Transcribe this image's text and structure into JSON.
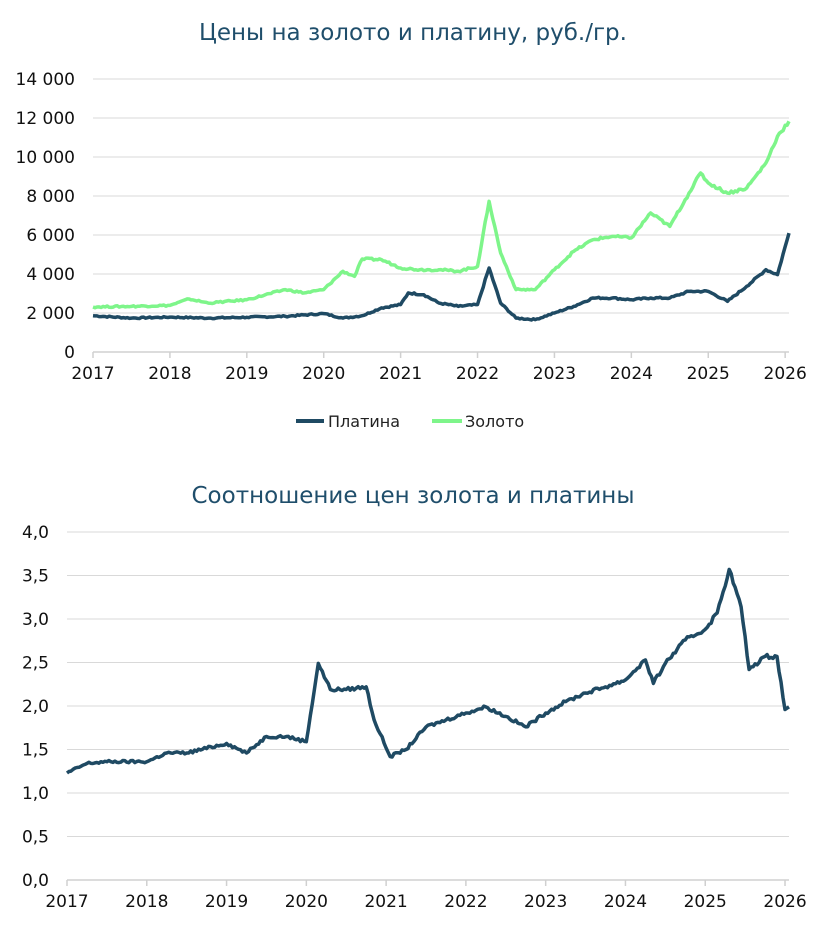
{
  "chart_data": [
    {
      "type": "line",
      "title": "Цены на золото и платину, руб./гр.",
      "xlabel": "",
      "ylabel": "",
      "xlim": [
        2017,
        2026.05
      ],
      "ylim": [
        0,
        14000
      ],
      "x_ticks": [
        "2017",
        "2018",
        "2019",
        "2020",
        "2021",
        "2022",
        "2023",
        "2024",
        "2025",
        "2026"
      ],
      "y_ticks": [
        "0",
        "2 000",
        "4 000",
        "6 000",
        "8 000",
        "10 000",
        "12 000",
        "14 000"
      ],
      "grid": true,
      "legend_position": "bottom",
      "series": [
        {
          "name": "Платина",
          "color": "#1f4a63",
          "x": [
            2017.0,
            2017.5,
            2018.0,
            2018.5,
            2019.0,
            2019.5,
            2020.0,
            2020.25,
            2020.5,
            2020.75,
            2021.0,
            2021.1,
            2021.3,
            2021.5,
            2021.75,
            2022.0,
            2022.15,
            2022.3,
            2022.5,
            2022.75,
            2023.0,
            2023.25,
            2023.5,
            2023.75,
            2024.0,
            2024.25,
            2024.5,
            2024.75,
            2025.0,
            2025.25,
            2025.5,
            2025.75,
            2025.9,
            2026.05
          ],
          "y": [
            1860,
            1740,
            1790,
            1740,
            1780,
            1830,
            1970,
            1740,
            1860,
            2260,
            2430,
            3030,
            2940,
            2510,
            2340,
            2430,
            4310,
            2510,
            1740,
            1660,
            2000,
            2340,
            2770,
            2770,
            2680,
            2770,
            2770,
            3110,
            3110,
            2600,
            3370,
            4220,
            3970,
            6100
          ]
        },
        {
          "name": "Золото",
          "color": "#7ef58a",
          "x": [
            2017.0,
            2017.5,
            2018.0,
            2018.25,
            2018.5,
            2019.0,
            2019.5,
            2019.75,
            2020.0,
            2020.25,
            2020.4,
            2020.5,
            2020.75,
            2021.0,
            2021.25,
            2021.5,
            2021.75,
            2022.0,
            2022.15,
            2022.3,
            2022.5,
            2022.75,
            2023.0,
            2023.25,
            2023.5,
            2023.75,
            2024.0,
            2024.25,
            2024.5,
            2024.75,
            2024.9,
            2025.0,
            2025.25,
            2025.5,
            2025.75,
            2025.9,
            2026.05
          ],
          "y": [
            2310,
            2340,
            2390,
            2720,
            2510,
            2680,
            3200,
            3030,
            3200,
            4140,
            3880,
            4770,
            4740,
            4310,
            4220,
            4220,
            4140,
            4390,
            7730,
            5080,
            3200,
            3200,
            4220,
            5160,
            5760,
            5930,
            5850,
            7130,
            6440,
            8150,
            9180,
            8670,
            8150,
            8410,
            9690,
            11060,
            11830
          ]
        }
      ]
    },
    {
      "type": "line",
      "title": "Соотношение цен золота и платины",
      "xlabel": "",
      "ylabel": "",
      "xlim": [
        2017,
        2026.05
      ],
      "ylim": [
        0,
        4
      ],
      "x_ticks": [
        "2017",
        "2018",
        "2019",
        "2020",
        "2021",
        "2022",
        "2023",
        "2024",
        "2025",
        "2026"
      ],
      "y_ticks": [
        "0,0",
        "0,5",
        "1,0",
        "1,5",
        "2,0",
        "2,5",
        "3,0",
        "3,5",
        "4,0"
      ],
      "grid": true,
      "series": [
        {
          "color": "#1f4a63",
          "x": [
            2017.0,
            2017.25,
            2017.5,
            2018.0,
            2018.25,
            2018.5,
            2019.0,
            2019.25,
            2019.5,
            2019.75,
            2020.0,
            2020.15,
            2020.3,
            2020.5,
            2020.75,
            2020.85,
            2021.05,
            2021.25,
            2021.5,
            2021.75,
            2022.0,
            2022.25,
            2022.5,
            2022.75,
            2023.0,
            2023.25,
            2023.5,
            2023.75,
            2024.0,
            2024.25,
            2024.35,
            2024.5,
            2024.75,
            2025.0,
            2025.15,
            2025.3,
            2025.45,
            2025.55,
            2025.75,
            2025.9,
            2026.0,
            2026.05
          ],
          "y": [
            1.23,
            1.34,
            1.36,
            1.36,
            1.46,
            1.46,
            1.57,
            1.46,
            1.65,
            1.65,
            1.59,
            2.49,
            2.19,
            2.19,
            2.22,
            1.84,
            1.42,
            1.5,
            1.76,
            1.84,
            1.92,
            1.99,
            1.88,
            1.76,
            1.92,
            2.05,
            2.15,
            2.22,
            2.3,
            2.53,
            2.26,
            2.49,
            2.76,
            2.88,
            3.07,
            3.57,
            3.14,
            2.42,
            2.57,
            2.57,
            1.96,
            1.99
          ]
        }
      ]
    }
  ]
}
